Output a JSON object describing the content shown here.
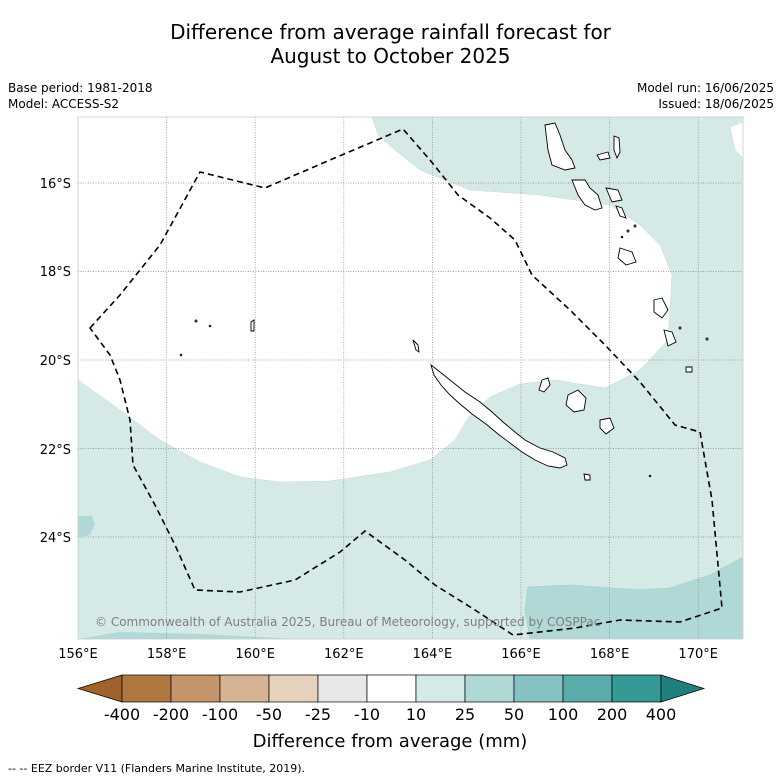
{
  "title_line1": "Difference from average rainfall forecast for",
  "title_line2": "August to October 2025",
  "base_period": "Base period: 1981-2018",
  "model": "Model: ACCESS-S2",
  "model_run": "Model run: 16/06/2025",
  "issued": "Issued: 18/06/2025",
  "copyright": "© Commonwealth of Australia 2025, Bureau of Meteorology, supported by COSPPac",
  "lat_labels": [
    "16°S",
    "18°S",
    "20°S",
    "22°S",
    "24°S"
  ],
  "lon_labels": [
    "156°E",
    "158°E",
    "160°E",
    "162°E",
    "164°E",
    "166°E",
    "168°E",
    "170°E"
  ],
  "colorbar": {
    "title": "Difference from average (mm)",
    "tick_labels": [
      "-400",
      "-200",
      "-100",
      "-50",
      "-25",
      "-10",
      "10",
      "25",
      "50",
      "100",
      "200",
      "400"
    ],
    "colors": [
      "#a0632b",
      "#b0773f",
      "#c4956a",
      "#d5b394",
      "#e6d1bd",
      "#e9e8e6",
      "#ffffff",
      "#d5e9e7",
      "#b0d8d6",
      "#86c2c1",
      "#5aacab",
      "#359995",
      "#20807c"
    ]
  },
  "footer": "-- -- EEZ border V11 (Flanders Marine Institute, 2019)."
}
